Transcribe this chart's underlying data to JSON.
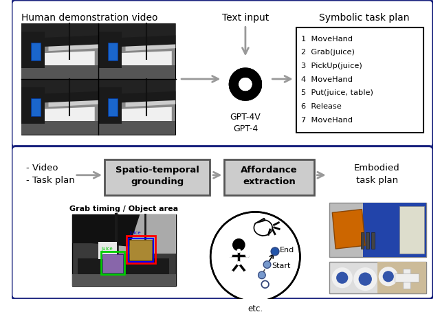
{
  "bg_color": "#ffffff",
  "box_border_color": "#1a237e",
  "arrow_color": "#999999",
  "top_labels": {
    "video_label": "Human demonstration video",
    "text_input": "Text input",
    "gpt_label": "GPT-4V\nGPT-4",
    "symbolic_label": "Symbolic task plan"
  },
  "task_plan_lines": [
    "1  MoveHand",
    "2  Grab(juice)",
    "3  PickUp(juice)",
    "4  MoveHand",
    "5  Put(juice, table)",
    "6  Release",
    "7  MoveHand"
  ],
  "bottom_labels": {
    "inputs": "- Video\n- Task plan",
    "spatio": "Spatio-temporal\ngrounding",
    "affordance": "Affordance\nextraction",
    "embodied": "Embodied\ntask plan",
    "grab_timing": "Grab timing / Object area",
    "etc": "etc."
  },
  "circle_labels": {
    "end": "End",
    "start": "Start"
  }
}
